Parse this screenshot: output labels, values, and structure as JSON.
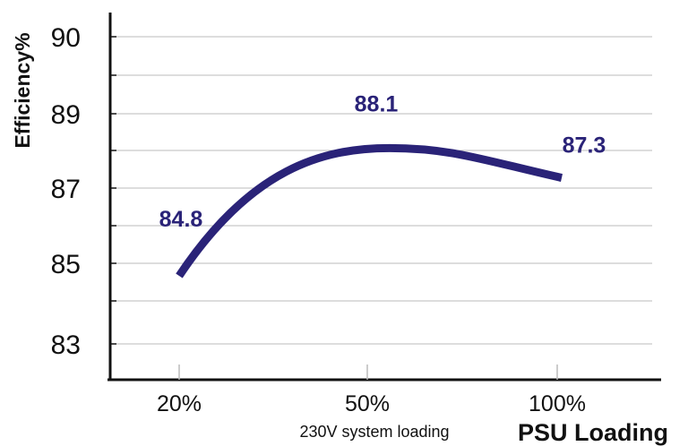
{
  "chart_data": {
    "type": "line",
    "x_categories": [
      "20%",
      "50%",
      "100%"
    ],
    "y_ticks": [
      {
        "label": "83",
        "value": 83
      },
      {
        "label": "85",
        "value": 85
      },
      {
        "label": "87",
        "value": 87
      },
      {
        "label": "89",
        "value": 89
      },
      {
        "label": "90",
        "value": 90
      }
    ],
    "series": [
      {
        "values": [
          84.8,
          88.1,
          87.3
        ],
        "data_labels": [
          "84.8",
          "88.1",
          "87.3"
        ]
      }
    ],
    "ylabel": "Efficiency%",
    "xlabel": "PSU Loading",
    "x_subtitle": "230V system loading",
    "grid": true,
    "colors": {
      "line": "#2a2378",
      "labels": "#2a2378",
      "grid": "#bbbbbb",
      "axis": "#111111"
    }
  }
}
